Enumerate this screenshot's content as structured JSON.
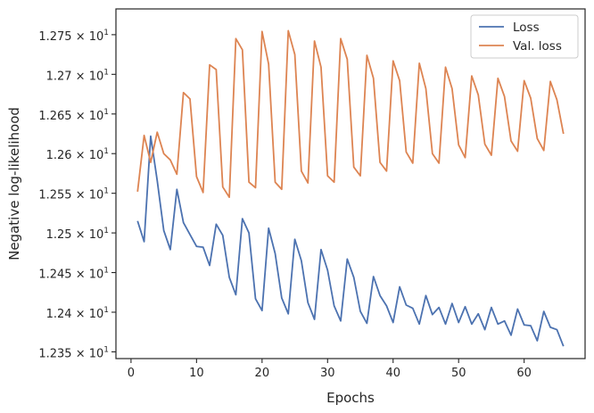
{
  "chart_data": {
    "type": "line",
    "xlabel": "Epochs",
    "ylabel": "Negative log-likelihood",
    "xlim": [
      -2.3,
      69.3
    ],
    "ylim": [
      12.3415,
      12.7825
    ],
    "x_ticks": [
      0,
      10,
      20,
      30,
      40,
      50,
      60
    ],
    "x_tick_labels": [
      "0",
      "10",
      "20",
      "30",
      "40",
      "50",
      "60"
    ],
    "y_ticks": [
      12.35,
      12.4,
      12.45,
      12.5,
      12.55,
      12.6,
      12.65,
      12.7,
      12.75
    ],
    "y_tick_labels": [
      {
        "mantissa": "1.235",
        "base": "10",
        "exp": "1"
      },
      {
        "mantissa": "1.24",
        "base": "10",
        "exp": "1"
      },
      {
        "mantissa": "1.245",
        "base": "10",
        "exp": "1"
      },
      {
        "mantissa": "1.25",
        "base": "10",
        "exp": "1"
      },
      {
        "mantissa": "1.255",
        "base": "10",
        "exp": "1"
      },
      {
        "mantissa": "1.26",
        "base": "10",
        "exp": "1"
      },
      {
        "mantissa": "1.265",
        "base": "10",
        "exp": "1"
      },
      {
        "mantissa": "1.27",
        "base": "10",
        "exp": "1"
      },
      {
        "mantissa": "1.275",
        "base": "10",
        "exp": "1"
      }
    ],
    "grid": false,
    "legend_position": "top-right",
    "x": [
      1,
      2,
      3,
      4,
      5,
      6,
      7,
      8,
      9,
      10,
      11,
      12,
      13,
      14,
      15,
      16,
      17,
      18,
      19,
      20,
      21,
      22,
      23,
      24,
      25,
      26,
      27,
      28,
      29,
      30,
      31,
      32,
      33,
      34,
      35,
      36,
      37,
      38,
      39,
      40,
      41,
      42,
      43,
      44,
      45,
      46,
      47,
      48,
      49,
      50,
      51,
      52,
      53,
      54,
      55,
      56,
      57,
      58,
      59,
      60,
      61,
      62,
      63,
      64,
      65,
      66
    ],
    "series": [
      {
        "name": "Loss",
        "color": "#4c72b0",
        "values": [
          12.515,
          12.489,
          12.622,
          12.566,
          12.503,
          12.479,
          12.555,
          12.513,
          12.498,
          12.483,
          12.482,
          12.459,
          12.511,
          12.497,
          12.444,
          12.422,
          12.518,
          12.5,
          12.417,
          12.402,
          12.506,
          12.474,
          12.418,
          12.398,
          12.492,
          12.465,
          12.412,
          12.391,
          12.479,
          12.453,
          12.408,
          12.389,
          12.467,
          12.444,
          12.401,
          12.386,
          12.445,
          12.421,
          12.408,
          12.387,
          12.432,
          12.409,
          12.405,
          12.385,
          12.421,
          12.397,
          12.406,
          12.385,
          12.411,
          12.387,
          12.407,
          12.385,
          12.398,
          12.378,
          12.406,
          12.385,
          12.389,
          12.371,
          12.404,
          12.384,
          12.383,
          12.364,
          12.401,
          12.381,
          12.378,
          12.357
        ]
      },
      {
        "name": "Val. loss",
        "color": "#dd8452",
        "values": [
          12.552,
          12.623,
          12.589,
          12.627,
          12.6,
          12.592,
          12.574,
          12.677,
          12.669,
          12.571,
          12.551,
          12.712,
          12.706,
          12.558,
          12.545,
          12.745,
          12.731,
          12.564,
          12.557,
          12.754,
          12.713,
          12.564,
          12.555,
          12.755,
          12.725,
          12.578,
          12.563,
          12.742,
          12.709,
          12.572,
          12.564,
          12.745,
          12.719,
          12.583,
          12.572,
          12.724,
          12.695,
          12.589,
          12.578,
          12.717,
          12.692,
          12.602,
          12.588,
          12.714,
          12.682,
          12.6,
          12.588,
          12.709,
          12.682,
          12.611,
          12.595,
          12.698,
          12.674,
          12.612,
          12.598,
          12.695,
          12.672,
          12.616,
          12.603,
          12.692,
          12.67,
          12.619,
          12.604,
          12.691,
          12.668,
          12.625
        ]
      }
    ]
  }
}
